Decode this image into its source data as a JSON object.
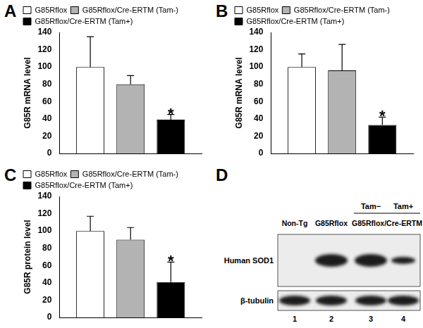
{
  "chart_data": [
    {
      "type": "bar",
      "title": "A",
      "y_label": "G85R mRNA level",
      "categories": [
        null
      ],
      "series": [
        {
          "name": "G85Rflox",
          "color": "#ffffff",
          "values": [
            100
          ],
          "errors": [
            35
          ]
        },
        {
          "name": "G85Rflox/Cre-ERTM (Tam-)",
          "color": "#b3b3b3",
          "values": [
            80
          ],
          "errors": [
            10
          ]
        },
        {
          "name": "G85Rflox/Cre-ERTM (Tam+)",
          "color": "#000000",
          "values": [
            39
          ],
          "errors": [
            6
          ]
        }
      ],
      "annotations": [
        {
          "text": "*",
          "series": "G85Rflox/Cre-ERTM (Tam+)"
        }
      ],
      "ylim": [
        0,
        140
      ],
      "yticks": [
        0,
        20,
        40,
        60,
        80,
        100,
        120,
        140
      ],
      "grid": false,
      "legend": "top-left",
      "tick_labels": "y"
    },
    {
      "type": "bar",
      "title": "B",
      "y_label": "G85R mRNA level",
      "categories": [
        null
      ],
      "series": [
        {
          "name": "G85Rflox",
          "color": "#ffffff",
          "values": [
            100
          ],
          "errors": [
            15
          ]
        },
        {
          "name": "G85Rflox/Cre-ERTM (Tam-)",
          "color": "#b3b3b3",
          "values": [
            96
          ],
          "errors": [
            30
          ]
        },
        {
          "name": "G85Rflox/Cre-ERTM (Tam+)",
          "color": "#000000",
          "values": [
            33
          ],
          "errors": [
            9
          ]
        }
      ],
      "annotations": [
        {
          "text": "*",
          "series": "G85Rflox/Cre-ERTM (Tam+)"
        }
      ],
      "ylim": [
        0,
        140
      ],
      "yticks": [
        0,
        20,
        40,
        60,
        80,
        100,
        120,
        140
      ],
      "grid": false,
      "legend": "top-left",
      "tick_labels": "y"
    },
    {
      "type": "bar",
      "title": "C",
      "y_label": "G85R protein level",
      "categories": [
        null
      ],
      "series": [
        {
          "name": "G85Rflox",
          "color": "#ffffff",
          "values": [
            100
          ],
          "errors": [
            17
          ]
        },
        {
          "name": "G85Rflox/Cre-ERTM (Tam-)",
          "color": "#b3b3b3",
          "values": [
            90
          ],
          "errors": [
            14
          ]
        },
        {
          "name": "G85Rflox/Cre-ERTM (Tam+)",
          "color": "#000000",
          "values": [
            41
          ],
          "errors": [
            23
          ]
        }
      ],
      "annotations": [
        {
          "text": "*",
          "series": "G85Rflox/Cre-ERTM (Tam+)"
        }
      ],
      "ylim": [
        0,
        140
      ],
      "yticks": [
        0,
        20,
        40,
        60,
        80,
        100,
        120,
        140
      ],
      "grid": false,
      "legend": "top-left",
      "tick_labels": "y"
    }
  ],
  "blot": {
    "title": "D",
    "lanes": [
      1,
      2,
      3,
      4
    ],
    "groups": [
      {
        "label": "Non-Tg",
        "lanes": [
          1
        ]
      },
      {
        "label": "G85Rflox",
        "lanes": [
          2
        ]
      },
      {
        "label": "G85Rflox/Cre-ERTM",
        "lanes": [
          3,
          4
        ]
      }
    ],
    "treatments": [
      {
        "label": "Tam−",
        "lane": 3
      },
      {
        "label": "Tam+",
        "lane": 4
      }
    ],
    "rows": [
      "Human SOD1",
      "β-tubulin"
    ]
  }
}
